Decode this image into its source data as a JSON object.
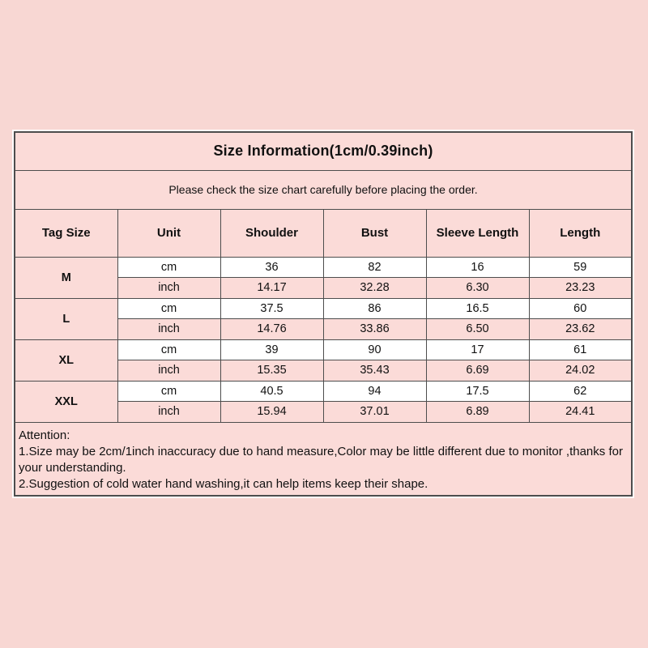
{
  "colors": {
    "page_bg": "#f8d7d3",
    "cell_pink": "#fbdbd8",
    "cell_white": "#ffffff",
    "border": "#4d4d4d",
    "text": "#111111"
  },
  "table": {
    "title": "Size Information(1cm/0.39inch)",
    "subtitle": "Please check the size chart carefully before placing the order.",
    "headers": [
      "Tag Size",
      "Unit",
      "Shoulder",
      "Bust",
      "Sleeve Length",
      "Length"
    ],
    "units": [
      "cm",
      "inch"
    ],
    "rows": [
      {
        "size": "M",
        "cm": [
          "36",
          "82",
          "16",
          "59"
        ],
        "inch": [
          "14.17",
          "32.28",
          "6.30",
          "23.23"
        ]
      },
      {
        "size": "L",
        "cm": [
          "37.5",
          "86",
          "16.5",
          "60"
        ],
        "inch": [
          "14.76",
          "33.86",
          "6.50",
          "23.62"
        ]
      },
      {
        "size": "XL",
        "cm": [
          "39",
          "90",
          "17",
          "61"
        ],
        "inch": [
          "15.35",
          "35.43",
          "6.69",
          "24.02"
        ]
      },
      {
        "size": "XXL",
        "cm": [
          "40.5",
          "94",
          "17.5",
          "62"
        ],
        "inch": [
          "15.94",
          "37.01",
          "6.89",
          "24.41"
        ]
      }
    ],
    "attention": {
      "heading": "Attention:",
      "lines": [
        "1.Size may be 2cm/1inch inaccuracy due to hand measure,Color may be little different due to monitor ,thanks for your understanding.",
        "2.Suggestion of cold water hand washing,it can help items keep their shape."
      ]
    }
  },
  "chart_data": {
    "type": "table",
    "title": "Size Information(1cm/0.39inch)",
    "subtitle": "Please check the size chart carefully before placing the order.",
    "columns": [
      "Tag Size",
      "Unit",
      "Shoulder",
      "Bust",
      "Sleeve Length",
      "Length"
    ],
    "rows": [
      [
        "M",
        "cm",
        "36",
        "82",
        "16",
        "59"
      ],
      [
        "M",
        "inch",
        "14.17",
        "32.28",
        "6.30",
        "23.23"
      ],
      [
        "L",
        "cm",
        "37.5",
        "86",
        "16.5",
        "60"
      ],
      [
        "L",
        "inch",
        "14.76",
        "33.86",
        "6.50",
        "23.62"
      ],
      [
        "XL",
        "cm",
        "39",
        "90",
        "17",
        "61"
      ],
      [
        "XL",
        "inch",
        "15.35",
        "35.43",
        "6.69",
        "24.02"
      ],
      [
        "XXL",
        "cm",
        "40.5",
        "94",
        "17.5",
        "62"
      ],
      [
        "XXL",
        "inch",
        "15.94",
        "37.01",
        "6.89",
        "24.41"
      ]
    ],
    "notes": [
      "Attention:",
      "1.Size may be 2cm/1inch inaccuracy due to hand measure,Color may be little different due to monitor ,thanks for your understanding.",
      "2.Suggestion of cold water hand washing,it can help items keep their shape."
    ]
  }
}
